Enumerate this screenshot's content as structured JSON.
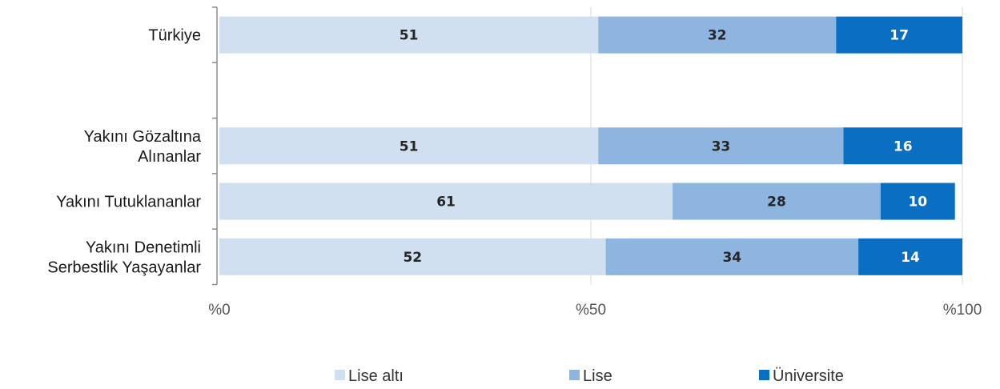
{
  "chart_data": {
    "type": "bar",
    "orientation": "horizontal",
    "stacked": true,
    "categories": [
      [
        "Türkiye"
      ],
      [],
      [
        "Yakını Gözaltına",
        "Alınanlar"
      ],
      [
        "Yakını Tutuklananlar"
      ],
      [
        "Yakını Denetimli",
        "Serbestlik Yaşayanlar"
      ]
    ],
    "series": [
      {
        "name": "Lise altı",
        "color": "#d0e0f1",
        "label_color": "#262626",
        "values": [
          51,
          null,
          51,
          61,
          52
        ]
      },
      {
        "name": "Lise",
        "color": "#8db5e0",
        "label_color": "#262626",
        "values": [
          32,
          null,
          33,
          28,
          34
        ]
      },
      {
        "name": "Üniversite",
        "color": "#0a6fc2",
        "label_color": "#ffffff",
        "values": [
          17,
          null,
          16,
          10,
          14
        ]
      }
    ],
    "xlim": [
      0,
      100
    ],
    "xticks": [
      0,
      50,
      100
    ],
    "xtick_labels": [
      "%0",
      "%50",
      "%100"
    ],
    "grid": true,
    "legend_position": "bottom"
  }
}
